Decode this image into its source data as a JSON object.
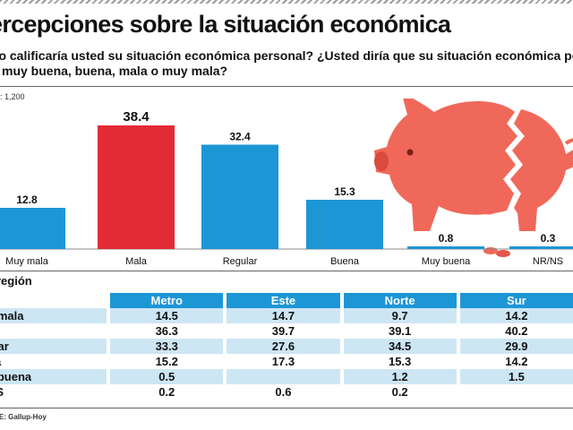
{
  "header": {
    "title": "ercepciones sobre la situación económica",
    "question_line1": "mo calificaría usted su situación económica personal? ¿Usted diría que su situación económica perso",
    "question_line2": "muy buena, buena, mala o muy mala?",
    "sample": ": 1,200"
  },
  "chart_data": {
    "type": "bar",
    "categories": [
      "Muy mala",
      "Mala",
      "Regular",
      "Buena",
      "Muy buena",
      "NR/NS"
    ],
    "values": [
      12.8,
      38.4,
      32.4,
      15.3,
      0.8,
      0.3
    ],
    "value_labels": [
      "12.8",
      "38.4",
      "32.4",
      "15.3",
      "0.8",
      "0.3"
    ],
    "highlight_index": 1,
    "colors": {
      "bar": "#1d96d6",
      "highlight": "#e32b35"
    },
    "ylim": [
      0,
      40
    ],
    "title": "",
    "xlabel": "",
    "ylabel": ""
  },
  "region_table": {
    "subtitle": "región",
    "columns": [
      "Metro",
      "Este",
      "Norte",
      "Sur"
    ],
    "rows": [
      {
        "label": "y mala",
        "values": [
          "14.5",
          "14.7",
          "9.7",
          "14.2"
        ]
      },
      {
        "label": "a",
        "values": [
          "36.3",
          "39.7",
          "39.1",
          "40.2"
        ]
      },
      {
        "label": "ular",
        "values": [
          "33.3",
          "27.6",
          "34.5",
          "29.9"
        ]
      },
      {
        "label": "na",
        "values": [
          "15.2",
          "17.3",
          "15.3",
          "14.2"
        ]
      },
      {
        "label": "y buena",
        "values": [
          "0.5",
          "",
          "1.2",
          "1.5"
        ]
      },
      {
        "label": "NS",
        "values": [
          "0.2",
          "0.6",
          "0.2",
          ""
        ]
      }
    ]
  },
  "footer": {
    "source": "TE: Gallup-Hoy"
  },
  "colors": {
    "accent": "#1d96d6",
    "accent_light": "#cde6f4",
    "piggy": "#f0685a",
    "piggy_dark": "#d94b3d"
  },
  "decoration": {
    "icon": "broken-piggy-bank-icon"
  }
}
